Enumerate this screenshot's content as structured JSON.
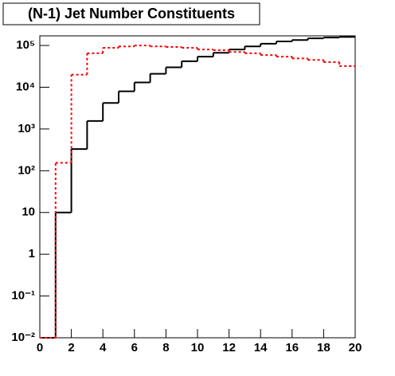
{
  "chart_data": {
    "type": "histogram",
    "title": "(N-1) Jet Number Constituents",
    "bins": [
      0,
      1,
      2,
      3,
      4,
      5,
      6,
      7,
      8,
      9,
      10,
      11,
      12,
      13,
      14,
      15,
      16,
      17,
      18,
      19,
      20
    ],
    "series": [
      {
        "color": "#000000",
        "style": "solid",
        "values": [
          0,
          10,
          330,
          1550,
          4200,
          8000,
          13000,
          21000,
          30000,
          42000,
          54000,
          67000,
          80000,
          95000,
          110000,
          125000,
          135000,
          148000,
          155000,
          160000
        ]
      },
      {
        "color": "#ff0000",
        "style": "dashed",
        "values": [
          0,
          155,
          20000,
          65000,
          88000,
          95000,
          100000,
          95000,
          92000,
          88000,
          80000,
          77000,
          70000,
          65000,
          59000,
          54000,
          49000,
          45000,
          40000,
          32000
        ]
      }
    ],
    "xlim": [
      0,
      20
    ],
    "xticks": [
      0,
      2,
      4,
      6,
      8,
      10,
      12,
      14,
      16,
      18,
      20
    ],
    "ylim": [
      0.01,
      170000
    ],
    "log_y": true,
    "yticks": [
      {
        "value": 0.01,
        "label": "10⁻²"
      },
      {
        "value": 0.1,
        "label": "10⁻¹"
      },
      1,
      10,
      {
        "value": 100,
        "label": "10²"
      },
      {
        "value": 1000,
        "label": "10³"
      },
      {
        "value": 10000,
        "label": "10⁴"
      },
      {
        "value": 100000,
        "label": "10⁵"
      }
    ]
  }
}
